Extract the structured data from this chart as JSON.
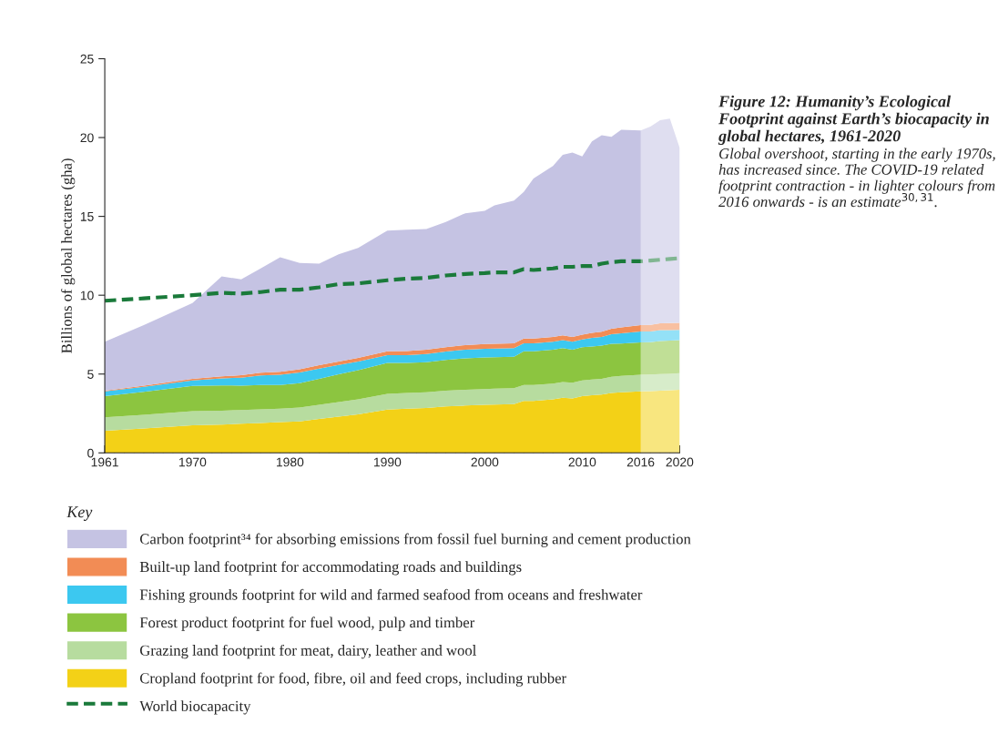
{
  "chart_data": {
    "type": "area",
    "stacked": true,
    "title": "Figure 12: Humanity’s Ecological Footprint against Earth’s biocapacity in global hectares, 1961-2020",
    "subtitle": "Global overshoot, starting in the early 1970s, has increased since. The COVID-19 related footprint contraction - in lighter colours from 2016 onwards - is an estimate$^{30,31}$.",
    "ylabel": "Billions of global hectares (gha)",
    "legend_title": "Key",
    "legend": "bottom",
    "grid": false,
    "xlim": [
      1961,
      2020
    ],
    "xticks": [
      1961,
      1970,
      1980,
      1990,
      2000,
      2010,
      2016,
      2020
    ],
    "ylim": [
      0,
      25
    ],
    "yticks": [
      0,
      5,
      10,
      15,
      20,
      25
    ],
    "x": [
      1961,
      1965,
      1970,
      1973,
      1975,
      1977,
      1979,
      1981,
      1983,
      1985,
      1987,
      1990,
      1992,
      1994,
      1996,
      1998,
      2000,
      2001,
      2003,
      2004,
      2005,
      2007,
      2008,
      2009,
      2010,
      2011,
      2012,
      2013,
      2014,
      2016,
      2017,
      2018,
      2019,
      2020
    ],
    "bands": [
      {
        "axis": "x",
        "from": 2016,
        "to": 2020,
        "color": "#ffffff"
      }
    ],
    "series": [
      {
        "name": "Cropland footprint for food, fibre, oil and feed crops, including rubber",
        "color": "#f3d117",
        "values": [
          1.4,
          1.55,
          1.75,
          1.8,
          1.85,
          1.9,
          1.95,
          2.0,
          2.15,
          2.3,
          2.45,
          2.75,
          2.8,
          2.85,
          2.95,
          3.0,
          3.05,
          3.07,
          3.1,
          3.3,
          3.3,
          3.4,
          3.5,
          3.45,
          3.6,
          3.65,
          3.7,
          3.8,
          3.85,
          3.9,
          3.92,
          3.95,
          3.97,
          4.0
        ]
      },
      {
        "name": "Grazing land footprint for meat, dairy, leather and wool",
        "color": "#b7dc9f",
        "values": [
          0.85,
          0.87,
          0.9,
          0.88,
          0.87,
          0.86,
          0.85,
          0.87,
          0.9,
          0.93,
          0.95,
          1.0,
          1.0,
          1.0,
          1.0,
          1.0,
          1.0,
          1.0,
          1.0,
          1.0,
          1.0,
          1.0,
          1.0,
          1.0,
          1.0,
          1.0,
          1.0,
          1.02,
          1.03,
          1.05,
          1.05,
          1.05,
          1.05,
          1.05
        ]
      },
      {
        "name": "Forest product footprint for fuel wood, pulp and timber",
        "color": "#8cc540",
        "values": [
          1.35,
          1.45,
          1.6,
          1.6,
          1.55,
          1.55,
          1.5,
          1.55,
          1.65,
          1.75,
          1.85,
          1.95,
          1.9,
          1.9,
          1.95,
          2.0,
          2.0,
          2.0,
          2.0,
          2.15,
          2.15,
          2.15,
          2.15,
          2.1,
          2.1,
          2.1,
          2.1,
          2.1,
          2.05,
          2.05,
          2.05,
          2.1,
          2.1,
          2.1
        ]
      },
      {
        "name": "Fishing grounds footprint for wild and farmed seafood from oceans and freshwater",
        "color": "#3cc8f0",
        "values": [
          0.3,
          0.32,
          0.35,
          0.45,
          0.5,
          0.6,
          0.65,
          0.68,
          0.65,
          0.6,
          0.55,
          0.5,
          0.5,
          0.52,
          0.53,
          0.55,
          0.55,
          0.55,
          0.55,
          0.5,
          0.5,
          0.5,
          0.5,
          0.5,
          0.5,
          0.55,
          0.55,
          0.6,
          0.65,
          0.7,
          0.68,
          0.68,
          0.66,
          0.65
        ]
      },
      {
        "name": "Built-up land footprint for accommodating roads and buildings",
        "color": "#f28c55",
        "values": [
          0.05,
          0.07,
          0.1,
          0.13,
          0.15,
          0.17,
          0.2,
          0.2,
          0.21,
          0.22,
          0.23,
          0.25,
          0.26,
          0.27,
          0.28,
          0.29,
          0.3,
          0.3,
          0.3,
          0.3,
          0.3,
          0.3,
          0.3,
          0.3,
          0.3,
          0.32,
          0.33,
          0.35,
          0.38,
          0.4,
          0.42,
          0.44,
          0.45,
          0.45
        ]
      },
      {
        "name": "Carbon footprint³⁴ for absorbing emissions from fossil fuel burning and cement production",
        "color": "#c5c3e3",
        "values": [
          3.1,
          3.84,
          4.8,
          6.34,
          6.08,
          6.62,
          7.25,
          6.75,
          6.44,
          6.8,
          6.97,
          7.65,
          7.69,
          7.66,
          7.94,
          8.36,
          8.45,
          8.78,
          9.05,
          9.3,
          10.15,
          10.85,
          11.45,
          11.7,
          11.3,
          12.13,
          12.47,
          12.18,
          12.54,
          12.35,
          12.58,
          12.88,
          12.97,
          11.1
        ]
      },
      {
        "name": "World biocapacity",
        "type": "line",
        "line_style": "dashed",
        "color": "#1a7a3a",
        "values": [
          9.65,
          9.8,
          10.0,
          10.15,
          10.1,
          10.2,
          10.35,
          10.35,
          10.5,
          10.7,
          10.75,
          10.95,
          11.05,
          11.1,
          11.25,
          11.35,
          11.4,
          11.45,
          11.45,
          11.65,
          11.6,
          11.7,
          11.8,
          11.8,
          11.85,
          11.85,
          12.0,
          12.1,
          12.15,
          12.15,
          12.2,
          12.25,
          12.3,
          12.35
        ]
      }
    ]
  }
}
